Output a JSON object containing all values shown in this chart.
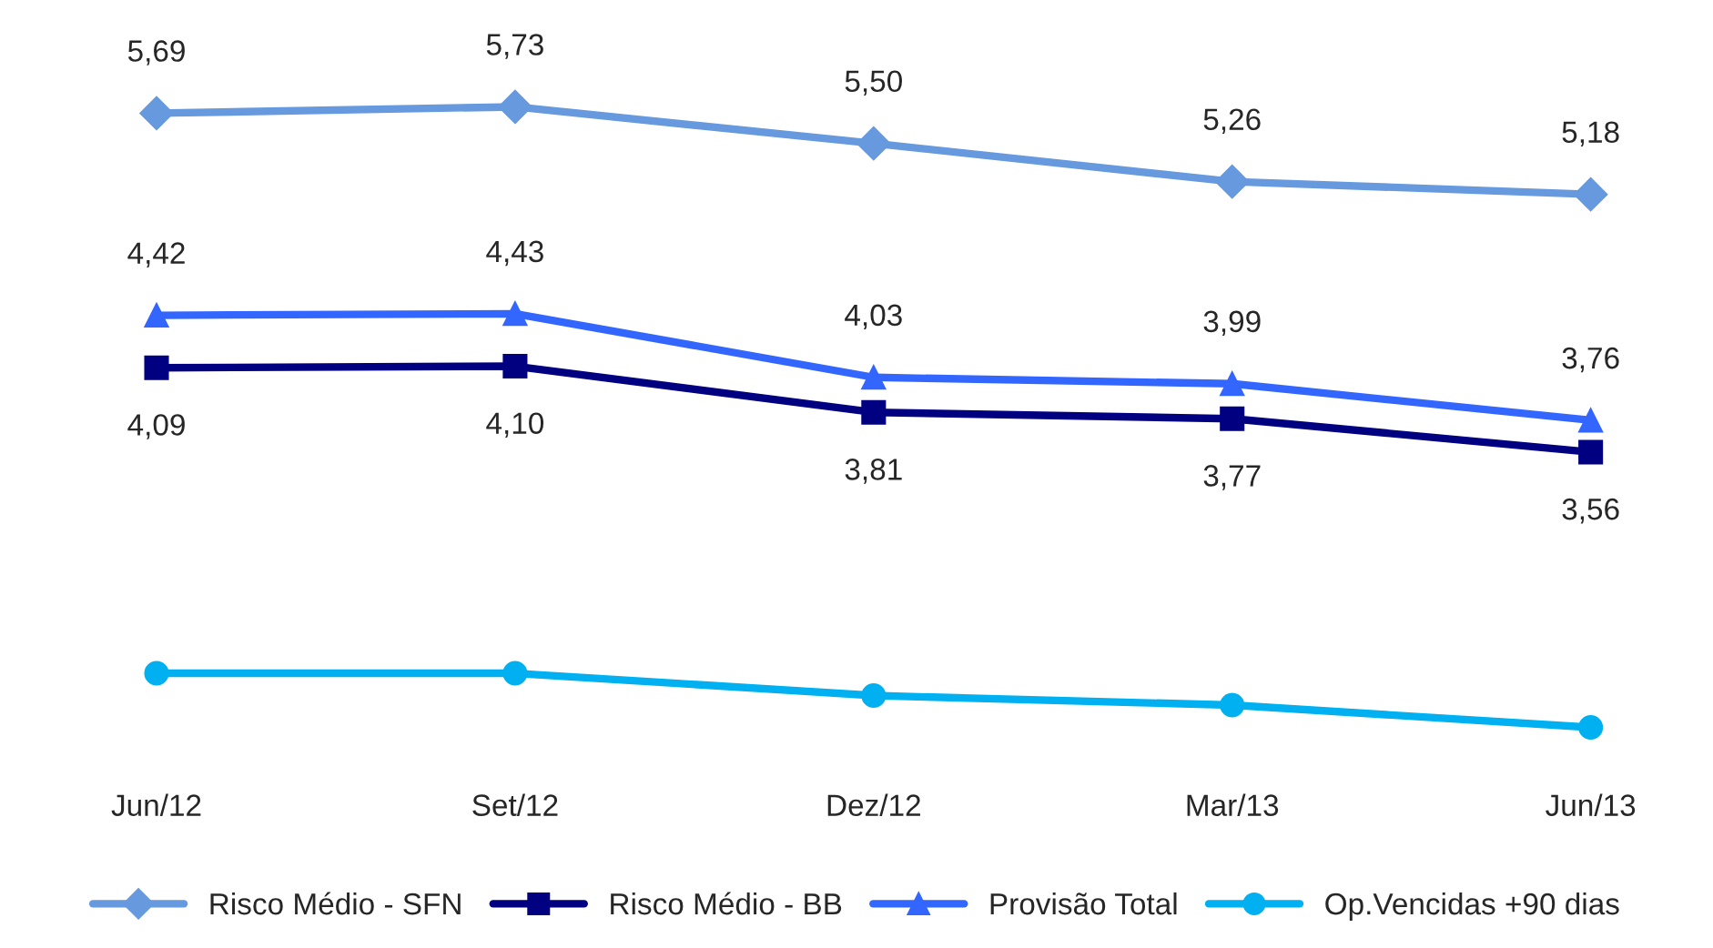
{
  "chart_data": {
    "type": "line",
    "categories": [
      "Jun/12",
      "Set/12",
      "Dez/12",
      "Mar/13",
      "Jun/13"
    ],
    "series": [
      {
        "name": "Risco Médio - SFN",
        "color": "#6699dd",
        "marker": "diamond",
        "values": [
          5.69,
          5.73,
          5.5,
          5.26,
          5.18
        ],
        "value_labels": [
          "5,69",
          "5,73",
          "5,50",
          "5,26",
          "5,18"
        ]
      },
      {
        "name": "Risco Médio - BB",
        "color": "#000080",
        "marker": "square",
        "values": [
          4.09,
          4.1,
          3.81,
          3.77,
          3.56
        ],
        "value_labels": [
          "4,09",
          "4,10",
          "3,81",
          "3,77",
          "3,56"
        ]
      },
      {
        "name": "Provisão Total",
        "color": "#3366ff",
        "marker": "triangle",
        "values": [
          4.42,
          4.43,
          4.03,
          3.99,
          3.76
        ],
        "value_labels": [
          "4,42",
          "4,43",
          "4,03",
          "3,99",
          "3,76"
        ]
      },
      {
        "name": "Op.Vencidas +90 dias",
        "color": "#00b0f0",
        "marker": "circle",
        "values": [
          2.17,
          2.17,
          2.03,
          1.97,
          1.83
        ]
      }
    ],
    "legend": "bottom",
    "grid": false,
    "tick_labels": "x"
  }
}
